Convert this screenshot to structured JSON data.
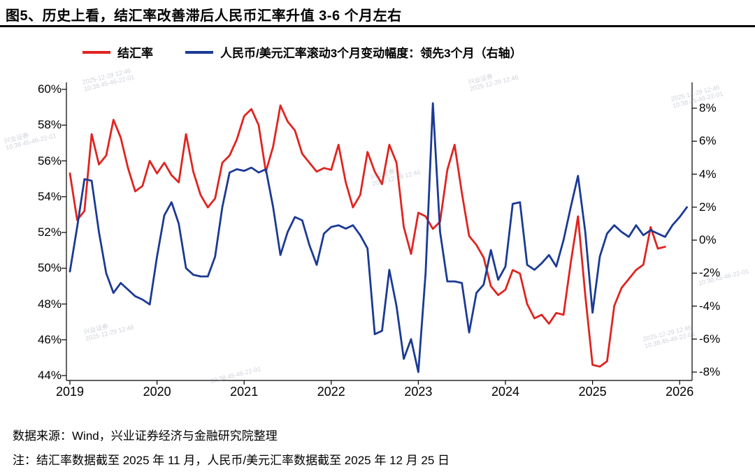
{
  "title": "图5、历史上看，结汇率改善滞后人民币汇率升值 3-6 个月左右",
  "legend": {
    "item1": "结汇率",
    "item2": "人民币/美元汇率滚动3个月变动幅度：领先3个月（右轴）"
  },
  "colors": {
    "red_series": "#e02420",
    "blue_series": "#1b3a94",
    "axis": "#000000"
  },
  "footer": {
    "source": "数据来源：Wind，兴业证券经济与金融研究院整理",
    "note": "注：结汇率数据截至 2025 年 11 月，人民币/美元汇率数据截至 2025 年 12 月 25 日"
  },
  "watermark": {
    "line1": "兴业证券",
    "line2": "2025-12-29 12:46",
    "line3": "10:38.45-46-22-01"
  },
  "chart_data": {
    "type": "line",
    "title": "图5、历史上看，结汇率改善滞后人民币汇率升值 3-6 个月左右",
    "legend_position": "top",
    "grid": false,
    "left_axis": {
      "ticks": [
        60,
        58,
        56,
        54,
        52,
        50,
        48,
        46,
        44
      ],
      "range": [
        44,
        60
      ],
      "suffix": "%"
    },
    "right_axis": {
      "ticks": [
        8,
        6,
        4,
        2,
        0,
        -2,
        -4,
        -6,
        -8
      ],
      "range": [
        -8,
        8
      ],
      "suffix": "%"
    },
    "x_axis": {
      "ticks": [
        2019,
        2020,
        2021,
        2022,
        2023,
        2024,
        2025,
        2026
      ],
      "range": [
        2019,
        2026.2
      ]
    },
    "series": [
      {
        "name": "结汇率",
        "axis": "left",
        "color": "#e02420",
        "x_start": 2019.0,
        "x_step": 0.0833333,
        "values": [
          55.3,
          52.7,
          53.2,
          57.5,
          55.8,
          56.3,
          58.3,
          57.3,
          55.6,
          54.3,
          54.6,
          56.0,
          55.3,
          55.9,
          55.2,
          54.8,
          57.5,
          55.4,
          54.1,
          53.4,
          53.9,
          55.9,
          56.3,
          57.2,
          58.5,
          58.9,
          58.0,
          55.4,
          56.8,
          59.1,
          58.2,
          57.7,
          56.4,
          55.9,
          55.4,
          55.6,
          55.5,
          56.9,
          54.8,
          53.4,
          54.1,
          56.5,
          55.4,
          54.7,
          56.9,
          55.9,
          52.3,
          50.8,
          53.1,
          52.9,
          52.2,
          52.6,
          55.5,
          56.9,
          54.2,
          51.8,
          51.3,
          50.6,
          49.0,
          48.5,
          48.8,
          49.9,
          49.7,
          48.0,
          47.2,
          47.4,
          46.9,
          47.5,
          47.4,
          50.3,
          52.9,
          48.5,
          44.6,
          44.5,
          44.8,
          47.9,
          48.9,
          49.4,
          49.9,
          50.2,
          52.3,
          51.1,
          51.2
        ]
      },
      {
        "name": "人民币/美元汇率滚动3个月变动幅度：领先3个月（右轴）",
        "axis": "right",
        "color": "#1b3a94",
        "x_start": 2019.0,
        "x_step": 0.0833333,
        "values": [
          -1.9,
          0.8,
          3.7,
          3.6,
          0.5,
          -2.0,
          -3.2,
          -2.6,
          -3.0,
          -3.4,
          -3.6,
          -3.9,
          -1.0,
          1.5,
          2.3,
          1.0,
          -1.7,
          -2.1,
          -2.2,
          -2.2,
          -1.0,
          2.0,
          4.1,
          4.3,
          4.2,
          4.4,
          4.1,
          4.3,
          2.0,
          -0.9,
          0.5,
          1.4,
          1.2,
          -0.3,
          -1.5,
          0.4,
          0.8,
          0.9,
          0.7,
          0.9,
          0.3,
          -0.5,
          -5.7,
          -5.5,
          -1.8,
          -4.0,
          -7.2,
          -6.0,
          -8.0,
          -2.0,
          8.3,
          0.5,
          -2.5,
          -2.5,
          -2.6,
          -5.6,
          -3.2,
          -2.7,
          -0.6,
          -2.4,
          -1.6,
          2.2,
          2.3,
          -1.5,
          -1.8,
          -1.4,
          -0.9,
          -1.6,
          0.0,
          2.0,
          3.9,
          0.5,
          -4.4,
          -1.0,
          0.4,
          0.9,
          0.5,
          0.2,
          0.9,
          0.3,
          0.6,
          0.4,
          0.2,
          0.9,
          1.4,
          2.0
        ]
      }
    ]
  }
}
